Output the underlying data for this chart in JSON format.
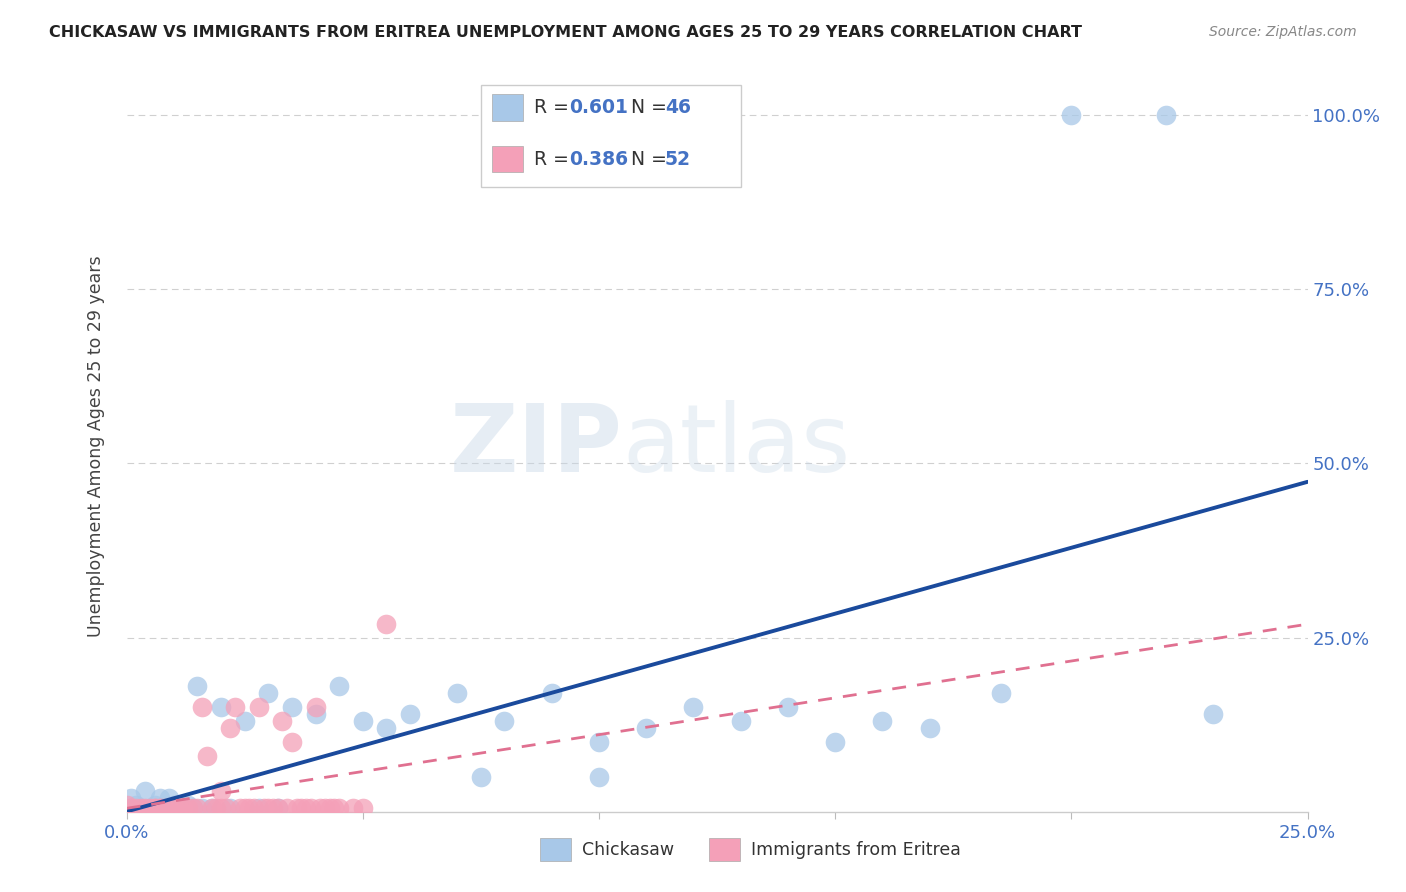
{
  "title": "CHICKASAW VS IMMIGRANTS FROM ERITREA UNEMPLOYMENT AMONG AGES 25 TO 29 YEARS CORRELATION CHART",
  "source": "Source: ZipAtlas.com",
  "ylabel": "Unemployment Among Ages 25 to 29 years",
  "xlim": [
    0.0,
    0.25
  ],
  "ylim": [
    0.0,
    1.05
  ],
  "chickasaw_R": 0.601,
  "chickasaw_N": 46,
  "eritrea_R": 0.386,
  "eritrea_N": 52,
  "chickasaw_color": "#a8c8e8",
  "eritrea_color": "#f4a0b8",
  "chickasaw_line_color": "#1a4a9c",
  "eritrea_line_color": "#e07090",
  "watermark_zip": "ZIP",
  "watermark_atlas": "atlas",
  "background_color": "#ffffff",
  "grid_color": "#d0d0d0",
  "chickasaw_x": [
    0.001,
    0.002,
    0.003,
    0.004,
    0.005,
    0.006,
    0.007,
    0.008,
    0.009,
    0.01,
    0.011,
    0.012,
    0.013,
    0.014,
    0.015,
    0.016,
    0.018,
    0.02,
    0.022,
    0.025,
    0.028,
    0.03,
    0.032,
    0.035,
    0.04,
    0.045,
    0.05,
    0.055,
    0.06,
    0.07,
    0.075,
    0.08,
    0.09,
    0.1,
    0.1,
    0.11,
    0.12,
    0.13,
    0.14,
    0.15,
    0.16,
    0.17,
    0.185,
    0.2,
    0.22,
    0.23
  ],
  "chickasaw_y": [
    0.02,
    0.01,
    0.005,
    0.03,
    0.005,
    0.01,
    0.02,
    0.005,
    0.02,
    0.01,
    0.005,
    0.005,
    0.01,
    0.005,
    0.18,
    0.005,
    0.005,
    0.15,
    0.005,
    0.13,
    0.005,
    0.17,
    0.005,
    0.15,
    0.14,
    0.18,
    0.13,
    0.12,
    0.14,
    0.17,
    0.05,
    0.13,
    0.17,
    0.1,
    0.05,
    0.12,
    0.15,
    0.13,
    0.15,
    0.1,
    0.13,
    0.12,
    0.17,
    1.0,
    1.0,
    0.14
  ],
  "eritrea_x": [
    0.0,
    0.001,
    0.002,
    0.003,
    0.004,
    0.005,
    0.006,
    0.006,
    0.007,
    0.007,
    0.008,
    0.009,
    0.01,
    0.011,
    0.012,
    0.013,
    0.014,
    0.015,
    0.016,
    0.017,
    0.018,
    0.019,
    0.02,
    0.02,
    0.021,
    0.022,
    0.023,
    0.024,
    0.025,
    0.026,
    0.027,
    0.028,
    0.029,
    0.03,
    0.031,
    0.032,
    0.033,
    0.034,
    0.035,
    0.036,
    0.037,
    0.038,
    0.039,
    0.04,
    0.041,
    0.042,
    0.043,
    0.044,
    0.045,
    0.048,
    0.05,
    0.055
  ],
  "eritrea_y": [
    0.01,
    0.005,
    0.005,
    0.005,
    0.005,
    0.005,
    0.005,
    0.005,
    0.005,
    0.005,
    0.005,
    0.005,
    0.005,
    0.005,
    0.005,
    0.005,
    0.005,
    0.005,
    0.15,
    0.08,
    0.005,
    0.005,
    0.005,
    0.03,
    0.005,
    0.12,
    0.15,
    0.005,
    0.005,
    0.005,
    0.005,
    0.15,
    0.005,
    0.005,
    0.005,
    0.005,
    0.13,
    0.005,
    0.1,
    0.005,
    0.005,
    0.005,
    0.005,
    0.15,
    0.005,
    0.005,
    0.005,
    0.005,
    0.005,
    0.005,
    0.005,
    0.27
  ],
  "axis_label_color": "#4472c4",
  "title_color": "#222222",
  "source_color": "#888888",
  "ylabel_color": "#444444"
}
